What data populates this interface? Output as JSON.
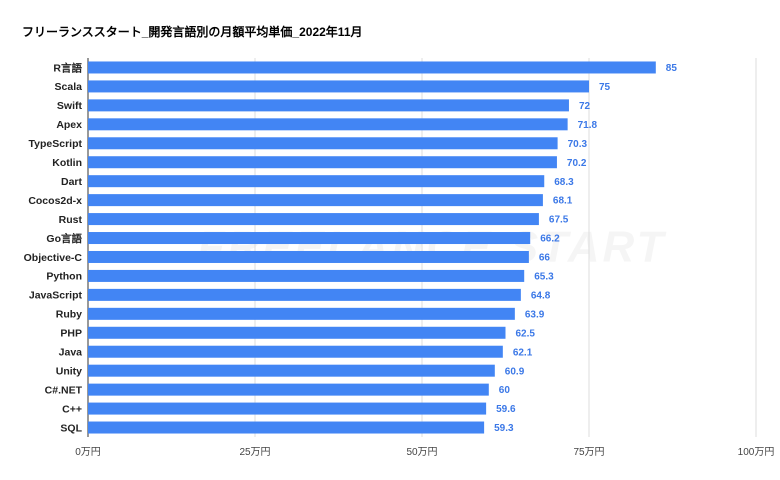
{
  "chart_data": {
    "type": "bar",
    "orientation": "horizontal",
    "title": "フリーランススタート_開発言語別の月額平均単価_2022年11月",
    "categories": [
      "R言語",
      "Scala",
      "Swift",
      "Apex",
      "TypeScript",
      "Kotlin",
      "Dart",
      "Cocos2d-x",
      "Rust",
      "Go言語",
      "Objective-C",
      "Python",
      "JavaScript",
      "Ruby",
      "PHP",
      "Java",
      "Unity",
      "C#.NET",
      "C++",
      "SQL"
    ],
    "value_labels": [
      "85",
      "75",
      "72",
      "71.8",
      "70.3",
      "70.2",
      "68.3",
      "68.1",
      "67.5",
      "66.2",
      "66",
      "65.3",
      "64.8",
      "63.9",
      "62.5",
      "62.1",
      "60.9",
      "60",
      "59.6",
      "59.3"
    ],
    "values": [
      85,
      75,
      72,
      71.8,
      70.3,
      70.2,
      68.3,
      68.1,
      67.5,
      66.2,
      66,
      65.3,
      64.8,
      63.9,
      62.5,
      62.1,
      60.9,
      60,
      59.6,
      59.3
    ],
    "xlim": [
      0,
      100
    ],
    "x_ticks": [
      0,
      25,
      50,
      75,
      100
    ],
    "x_tick_labels": [
      "0万円",
      "25万円",
      "50万円",
      "75万円",
      "100万円"
    ],
    "grid": true,
    "legend": "none",
    "xlabel": "",
    "ylabel": "",
    "colors": {
      "bar": "#4285f4",
      "value_label": "#3b78e7",
      "grid": "#dddddd",
      "axis": "#333333"
    },
    "watermark": "FREELANCE START"
  }
}
